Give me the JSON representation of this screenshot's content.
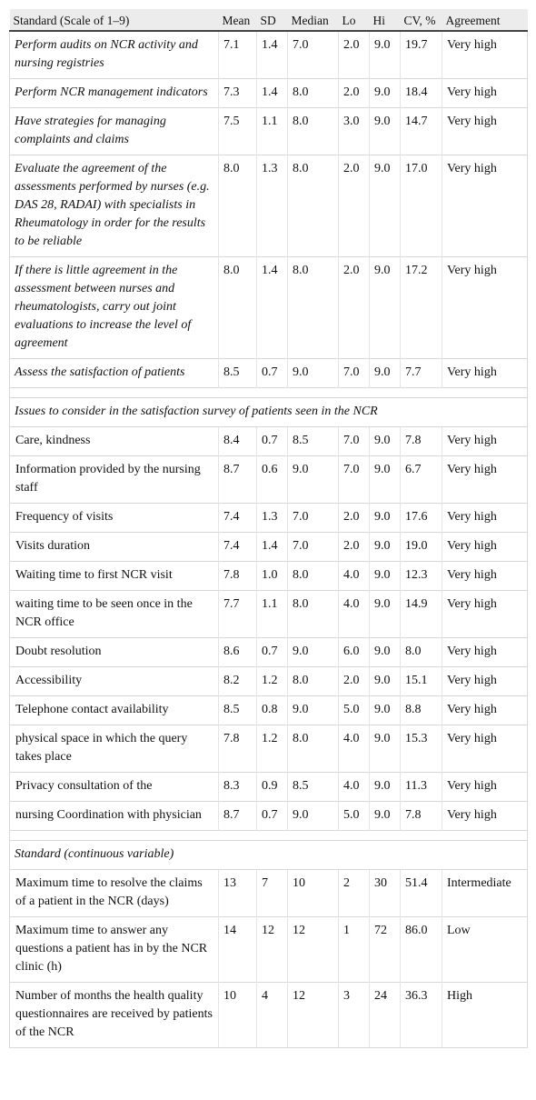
{
  "table": {
    "header": [
      "Standard (Scale of 1–9)",
      "Mean",
      "SD",
      "Median",
      "Lo",
      "Hi",
      "CV, %",
      "Agreement"
    ],
    "groups": [
      {
        "rows": [
          [
            "Perform audits on NCR activity and nursing registries",
            "7.1",
            "1.4",
            "7.0",
            "2.0",
            "9.0",
            "19.7",
            "Very high"
          ],
          [
            "Perform NCR management indicators",
            "7.3",
            "1.4",
            "8.0",
            "2.0",
            "9.0",
            "18.4",
            "Very high"
          ],
          [
            "Have strategies for managing complaints and claims",
            "7.5",
            "1.1",
            "8.0",
            "3.0",
            "9.0",
            "14.7",
            "Very high"
          ],
          [
            "Evaluate the agreement of the assessments performed by nurses (e.g. DAS 28, RADAI) with specialists in Rheumatology in order for the results to be reliable",
            "8.0",
            "1.3",
            "8.0",
            "2.0",
            "9.0",
            "17.0",
            "Very high"
          ],
          [
            "If there is little agreement in the assessment between nurses and rheumatologists, carry out joint evaluations to increase the level of agreement",
            "8.0",
            "1.4",
            "8.0",
            "2.0",
            "9.0",
            "17.2",
            "Very high"
          ],
          [
            "Assess the satisfaction of patients",
            "8.5",
            "0.7",
            "9.0",
            "7.0",
            "9.0",
            "7.7",
            "Very high"
          ]
        ]
      },
      {
        "heading": "Issues to consider in the satisfaction survey of patients seen in the NCR",
        "rows": [
          [
            "Care, kindness",
            "8.4",
            "0.7",
            "8.5",
            "7.0",
            "9.0",
            "7.8",
            "Very high"
          ],
          [
            "Information provided by the nursing staff",
            "8.7",
            "0.6",
            "9.0",
            "7.0",
            "9.0",
            "6.7",
            "Very high"
          ],
          [
            "Frequency of visits",
            "7.4",
            "1.3",
            "7.0",
            "2.0",
            "9.0",
            "17.6",
            "Very high"
          ],
          [
            "Visits duration",
            "7.4",
            "1.4",
            "7.0",
            "2.0",
            "9.0",
            "19.0",
            "Very high"
          ],
          [
            "Waiting time to first NCR visit",
            "7.8",
            "1.0",
            "8.0",
            "4.0",
            "9.0",
            "12.3",
            "Very high"
          ],
          [
            "waiting time to be seen once in the NCR office",
            "7.7",
            "1.1",
            "8.0",
            "4.0",
            "9.0",
            "14.9",
            "Very high"
          ],
          [
            "Doubt resolution",
            "8.6",
            "0.7",
            "9.0",
            "6.0",
            "9.0",
            "8.0",
            "Very high"
          ],
          [
            "Accessibility",
            "8.2",
            "1.2",
            "8.0",
            "2.0",
            "9.0",
            "15.1",
            "Very high"
          ],
          [
            "Telephone contact availability",
            "8.5",
            "0.8",
            "9.0",
            "5.0",
            "9.0",
            "8.8",
            "Very high"
          ],
          [
            "physical space in which the query takes place",
            "7.8",
            "1.2",
            "8.0",
            "4.0",
            "9.0",
            "15.3",
            "Very high"
          ],
          [
            "Privacy consultation of the",
            "8.3",
            "0.9",
            "8.5",
            "4.0",
            "9.0",
            "11.3",
            "Very high"
          ],
          [
            "nursing Coordination with physician",
            "8.7",
            "0.7",
            "9.0",
            "5.0",
            "9.0",
            "7.8",
            "Very high"
          ]
        ]
      },
      {
        "heading": "Standard (continuous variable)",
        "rows": [
          [
            "Maximum time to resolve the claims of a patient in the NCR (days)",
            "13",
            "7",
            "10",
            "2",
            "30",
            "51.4",
            "Intermediate"
          ],
          [
            "Maximum time to answer any questions a patient has in by the NCR clinic (h)",
            "14",
            "12",
            "12",
            "1",
            "72",
            "86.0",
            "Low"
          ],
          [
            "Number of months the health quality questionnaires are received by patients of the NCR",
            "10",
            "4",
            "12",
            "3",
            "24",
            "36.3",
            "High"
          ]
        ]
      }
    ]
  }
}
